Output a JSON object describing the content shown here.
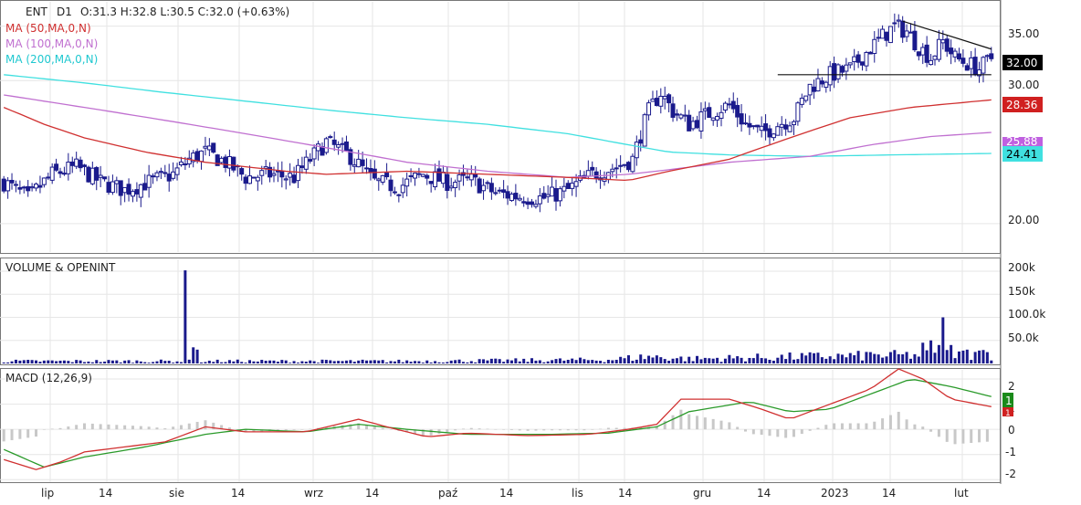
{
  "header": {
    "symbol": "ENT",
    "interval": "D1",
    "ohlc": "O:31.3  H:32.8  L:30.5  C:32.0  (+0.63%)",
    "ma50_label": "MA (50,MA,0,N)",
    "ma100_label": "MA (100,MA,0,N)",
    "ma200_label": "MA (200,MA,0,N)",
    "volume_title": "VOLUME & OPENINT",
    "macd_title": "MACD (12,26,9)"
  },
  "colors": {
    "candle": "#1a1a8c",
    "ma50": "#d03030",
    "ma100": "#c070d0",
    "ma200": "#40e0e0",
    "macd_line": "#d03030",
    "signal_line": "#2a9a2a",
    "hist": "#c8c8c8",
    "price_badge": "#000000",
    "ma50_badge": "#d02020",
    "ma100_badge": "#c060e0",
    "ma200_badge": "#40e0e0",
    "macd_badge": "#1a8a1a",
    "signal_badge": "#d02020"
  },
  "badges": {
    "price": "32.00",
    "ma50": "28.36",
    "ma100": "25.88",
    "ma200": "24.41",
    "macd": "1",
    "signal": "1"
  },
  "price_axis": {
    "ticks": [
      "35.00",
      "30.00",
      "20.00"
    ]
  },
  "volume_axis": {
    "ticks": [
      "200k",
      "150k",
      "100.0k",
      "50.0k"
    ]
  },
  "macd_axis": {
    "ticks": [
      "2",
      "1",
      "0",
      "-1",
      "-2"
    ]
  },
  "x_axis": {
    "labels": [
      "lip",
      "14",
      "sie",
      "14",
      "wrz",
      "14",
      "paź",
      "14",
      "lis",
      "14",
      "gru",
      "14",
      "2023",
      "14",
      "lut"
    ]
  },
  "chart_data": {
    "type": "candlestick",
    "symbol": "ENT",
    "interval": "D1",
    "last_ohlc": {
      "open": 31.3,
      "high": 32.8,
      "low": 30.5,
      "close": 32.0,
      "change_pct": 0.63
    },
    "price_scale": {
      "type": "log",
      "ylim": [
        18.5,
        37.5
      ],
      "ticks": [
        35,
        30,
        20
      ]
    },
    "volume_scale": {
      "ylim": [
        0,
        210000
      ],
      "ticks": [
        200000,
        150000,
        100000,
        50000
      ]
    },
    "macd_scale": {
      "ylim": [
        -2.1,
        2.4
      ],
      "ticks": [
        2,
        1,
        0,
        -1,
        -2
      ]
    },
    "x_labels": [
      "lip",
      "14",
      "sie",
      "14",
      "wrz",
      "14",
      "paź",
      "14",
      "lis",
      "14",
      "gru",
      "14",
      "2023",
      "14",
      "lut"
    ],
    "price_anchors": [
      [
        0,
        22.5
      ],
      [
        6,
        21.5
      ],
      [
        12,
        23.0
      ],
      [
        18,
        23.5
      ],
      [
        24,
        22.5
      ],
      [
        30,
        22.0
      ],
      [
        36,
        22.5
      ],
      [
        42,
        23.0
      ],
      [
        46,
        24.0
      ],
      [
        50,
        24.5
      ],
      [
        55,
        23.8
      ],
      [
        60,
        22.8
      ],
      [
        66,
        23.0
      ],
      [
        72,
        22.8
      ],
      [
        76,
        24.0
      ],
      [
        80,
        25.2
      ],
      [
        86,
        24.2
      ],
      [
        92,
        22.5
      ],
      [
        98,
        22.2
      ],
      [
        104,
        23.0
      ],
      [
        110,
        22.5
      ],
      [
        116,
        22.6
      ],
      [
        122,
        21.8
      ],
      [
        128,
        21.6
      ],
      [
        134,
        21.5
      ],
      [
        140,
        22.0
      ],
      [
        146,
        23.0
      ],
      [
        152,
        23.5
      ],
      [
        156,
        24.0
      ],
      [
        160,
        27.5
      ],
      [
        163,
        29.0
      ],
      [
        166,
        27.5
      ],
      [
        170,
        26.5
      ],
      [
        176,
        27.5
      ],
      [
        180,
        28.0
      ],
      [
        184,
        26.5
      ],
      [
        188,
        25.8
      ],
      [
        192,
        26.5
      ],
      [
        196,
        27.0
      ],
      [
        200,
        29.5
      ],
      [
        205,
        30.5
      ],
      [
        210,
        31.0
      ],
      [
        214,
        32.5
      ],
      [
        218,
        34.0
      ],
      [
        221,
        35.0
      ],
      [
        224,
        34.5
      ],
      [
        227,
        33.0
      ],
      [
        230,
        32.0
      ],
      [
        233,
        33.5
      ],
      [
        236,
        32.0
      ],
      [
        239,
        31.5
      ],
      [
        242,
        31.0
      ],
      [
        245,
        32.0
      ]
    ],
    "volume_spikes": [
      [
        45,
        202000
      ],
      [
        47,
        35000
      ],
      [
        48,
        30000
      ],
      [
        214,
        25000
      ],
      [
        228,
        45000
      ],
      [
        230,
        50000
      ],
      [
        232,
        40000
      ],
      [
        233,
        100000
      ],
      [
        235,
        40000
      ],
      [
        239,
        30000
      ],
      [
        242,
        28000
      ]
    ],
    "volume_base": [
      [
        0,
        5000
      ],
      [
        100,
        5000
      ],
      [
        150,
        8000
      ],
      [
        160,
        15000
      ],
      [
        170,
        10000
      ],
      [
        200,
        15000
      ],
      [
        245,
        20000
      ]
    ],
    "ma50": [
      [
        0,
        27.8
      ],
      [
        10,
        26.5
      ],
      [
        20,
        25.5
      ],
      [
        35,
        24.5
      ],
      [
        50,
        23.8
      ],
      [
        70,
        23.2
      ],
      [
        80,
        23.0
      ],
      [
        100,
        23.2
      ],
      [
        120,
        23.0
      ],
      [
        140,
        22.8
      ],
      [
        155,
        22.6
      ],
      [
        165,
        23.2
      ],
      [
        180,
        24.0
      ],
      [
        195,
        25.5
      ],
      [
        210,
        27.0
      ],
      [
        225,
        27.8
      ],
      [
        245,
        28.4
      ]
    ],
    "ma100": [
      [
        0,
        28.8
      ],
      [
        20,
        27.8
      ],
      [
        40,
        26.8
      ],
      [
        60,
        25.8
      ],
      [
        80,
        24.8
      ],
      [
        100,
        23.8
      ],
      [
        120,
        23.2
      ],
      [
        140,
        22.8
      ],
      [
        155,
        23.0
      ],
      [
        165,
        23.3
      ],
      [
        180,
        23.8
      ],
      [
        200,
        24.2
      ],
      [
        215,
        25.0
      ],
      [
        230,
        25.6
      ],
      [
        245,
        25.9
      ]
    ],
    "ma200": [
      [
        0,
        30.5
      ],
      [
        20,
        29.8
      ],
      [
        40,
        29.0
      ],
      [
        60,
        28.3
      ],
      [
        80,
        27.6
      ],
      [
        100,
        27.0
      ],
      [
        120,
        26.5
      ],
      [
        140,
        25.8
      ],
      [
        155,
        25.0
      ],
      [
        165,
        24.5
      ],
      [
        180,
        24.3
      ],
      [
        200,
        24.2
      ],
      [
        220,
        24.3
      ],
      [
        245,
        24.4
      ]
    ],
    "macd_line": [
      [
        0,
        -1.2
      ],
      [
        8,
        -1.6
      ],
      [
        14,
        -1.3
      ],
      [
        20,
        -0.9
      ],
      [
        30,
        -0.7
      ],
      [
        40,
        -0.5
      ],
      [
        50,
        0.1
      ],
      [
        60,
        -0.1
      ],
      [
        75,
        -0.1
      ],
      [
        88,
        0.4
      ],
      [
        95,
        0.1
      ],
      [
        105,
        -0.3
      ],
      [
        115,
        -0.15
      ],
      [
        130,
        -0.25
      ],
      [
        145,
        -0.2
      ],
      [
        155,
        0.0
      ],
      [
        162,
        0.2
      ],
      [
        168,
        1.2
      ],
      [
        180,
        1.2
      ],
      [
        188,
        0.8
      ],
      [
        195,
        0.4
      ],
      [
        205,
        1.0
      ],
      [
        215,
        1.6
      ],
      [
        222,
        2.4
      ],
      [
        228,
        2.0
      ],
      [
        235,
        1.2
      ],
      [
        245,
        0.9
      ]
    ],
    "signal_line": [
      [
        0,
        -0.8
      ],
      [
        10,
        -1.5
      ],
      [
        20,
        -1.1
      ],
      [
        35,
        -0.7
      ],
      [
        50,
        -0.2
      ],
      [
        60,
        0.0
      ],
      [
        75,
        -0.1
      ],
      [
        88,
        0.2
      ],
      [
        100,
        0.0
      ],
      [
        115,
        -0.2
      ],
      [
        135,
        -0.2
      ],
      [
        150,
        -0.15
      ],
      [
        162,
        0.1
      ],
      [
        170,
        0.7
      ],
      [
        185,
        1.1
      ],
      [
        195,
        0.7
      ],
      [
        205,
        0.8
      ],
      [
        215,
        1.4
      ],
      [
        225,
        2.0
      ],
      [
        235,
        1.7
      ],
      [
        245,
        1.3
      ]
    ],
    "annotations": {
      "support_line": {
        "from": [
          192,
          30.5
        ],
        "to": [
          245,
          30.5
        ]
      },
      "resistance_line": {
        "from": [
          223,
          35.5
        ],
        "to": [
          245,
          32.8
        ]
      }
    }
  }
}
